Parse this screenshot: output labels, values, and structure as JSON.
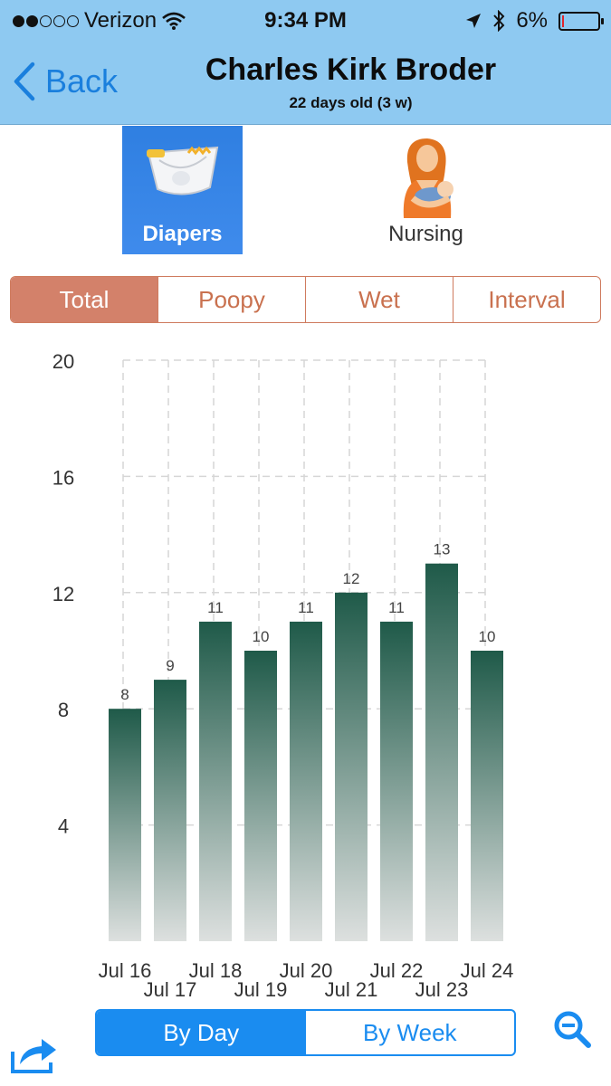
{
  "status_bar": {
    "carrier": "Verizon",
    "signal_bars_filled": 2,
    "signal_bars_total": 5,
    "time": "9:34 PM",
    "battery_percent_label": "6%",
    "battery_level": 0.06
  },
  "nav": {
    "back_label": "Back",
    "title": "Charles Kirk Broder",
    "subtitle": "22 days old (3 w)"
  },
  "categories": {
    "diapers_label": "Diapers",
    "nursing_label": "Nursing",
    "selected": "Diapers"
  },
  "filter_tabs": {
    "items": [
      "Total",
      "Poopy",
      "Wet",
      "Interval"
    ],
    "selected": "Total"
  },
  "period_tabs": {
    "by_day": "By Day",
    "by_week": "By Week",
    "selected": "By Day"
  },
  "icons": {
    "share": "share-icon",
    "zoom": "zoom-out-icon",
    "back": "chevron-left-icon",
    "location": "location-arrow-icon",
    "bluetooth": "bluetooth-icon",
    "wifi": "wifi-icon"
  },
  "colors": {
    "header_bg": "#8ec9f1",
    "accent_blue": "#1a8cf0",
    "tab_accent": "#d3816a",
    "bar_top": "#1f5a49",
    "bar_bottom": "#dde0df"
  },
  "chart_data": {
    "type": "bar",
    "categories": [
      "Jul 16",
      "Jul 17",
      "Jul 18",
      "Jul 19",
      "Jul 20",
      "Jul 21",
      "Jul 22",
      "Jul 23",
      "Jul 24"
    ],
    "values": [
      8,
      9,
      11,
      10,
      11,
      12,
      11,
      13,
      10
    ],
    "value_labels": [
      "8",
      "9",
      "11",
      "10",
      "11",
      "12",
      "11",
      "13",
      "10"
    ],
    "y_ticks": [
      4,
      8,
      12,
      16,
      20
    ],
    "ylim": [
      0,
      20
    ],
    "grid": true,
    "title": "",
    "xlabel": "",
    "ylabel": ""
  }
}
